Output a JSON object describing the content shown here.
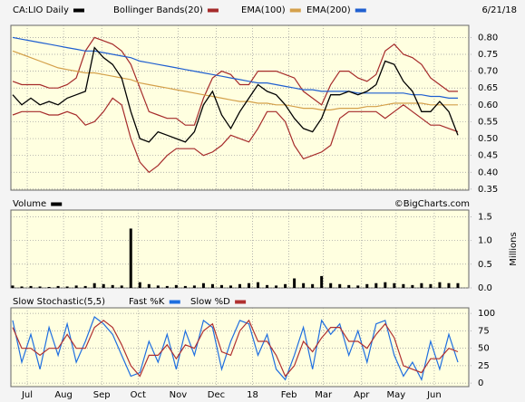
{
  "chart_data": [
    {
      "type": "line",
      "name": "CA:LIO Daily",
      "date": "6/21/18",
      "x": [
        0,
        5,
        10,
        15,
        20,
        25,
        30,
        35,
        40,
        45,
        50,
        55,
        60,
        65,
        70,
        75,
        80,
        85,
        90,
        95,
        100,
        105,
        110,
        115,
        120,
        125,
        130,
        135,
        140,
        145,
        150,
        155,
        160,
        165,
        170,
        175,
        180,
        185,
        190,
        195,
        200,
        205,
        210,
        215,
        220,
        225,
        230,
        235,
        240,
        245
      ],
      "xlim": [
        0,
        250
      ],
      "ylim": [
        0.347,
        0.836
      ],
      "yticks": [
        {
          "value": 0.35,
          "label": "0.35"
        },
        {
          "value": 0.4,
          "label": "0.40"
        },
        {
          "value": 0.45,
          "label": "0.45"
        },
        {
          "value": 0.5,
          "label": "0.50"
        },
        {
          "value": 0.55,
          "label": "0.55"
        },
        {
          "value": 0.6,
          "label": "0.60"
        },
        {
          "value": 0.65,
          "label": "0.65"
        },
        {
          "value": 0.7,
          "label": "0.70"
        },
        {
          "value": 0.75,
          "label": "0.75"
        },
        {
          "value": 0.8,
          "label": "0.80"
        }
      ],
      "grid": true,
      "color": "#000000",
      "values": [
        0.63,
        0.6,
        0.62,
        0.6,
        0.61,
        0.6,
        0.62,
        0.63,
        0.64,
        0.77,
        0.74,
        0.72,
        0.68,
        0.58,
        0.5,
        0.49,
        0.52,
        0.51,
        0.5,
        0.49,
        0.52,
        0.6,
        0.64,
        0.57,
        0.53,
        0.58,
        0.62,
        0.66,
        0.64,
        0.63,
        0.6,
        0.56,
        0.53,
        0.52,
        0.56,
        0.63,
        0.63,
        0.64,
        0.63,
        0.64,
        0.66,
        0.73,
        0.72,
        0.67,
        0.64,
        0.58,
        0.58,
        0.61,
        0.58,
        0.51
      ],
      "bands": {
        "name": "Bollinger Bands(20)",
        "color": "#a52a2a",
        "upper": [
          0.67,
          0.66,
          0.66,
          0.66,
          0.65,
          0.65,
          0.66,
          0.68,
          0.76,
          0.8,
          0.79,
          0.78,
          0.76,
          0.72,
          0.65,
          0.58,
          0.57,
          0.56,
          0.56,
          0.54,
          0.54,
          0.62,
          0.68,
          0.7,
          0.69,
          0.66,
          0.66,
          0.7,
          0.7,
          0.7,
          0.69,
          0.68,
          0.64,
          0.62,
          0.6,
          0.66,
          0.7,
          0.7,
          0.68,
          0.67,
          0.69,
          0.76,
          0.78,
          0.75,
          0.74,
          0.72,
          0.68,
          0.66,
          0.64,
          0.64
        ],
        "lower": [
          0.57,
          0.58,
          0.58,
          0.58,
          0.57,
          0.57,
          0.58,
          0.57,
          0.54,
          0.55,
          0.58,
          0.62,
          0.6,
          0.5,
          0.43,
          0.4,
          0.42,
          0.45,
          0.47,
          0.47,
          0.47,
          0.45,
          0.46,
          0.48,
          0.51,
          0.5,
          0.49,
          0.53,
          0.58,
          0.58,
          0.55,
          0.48,
          0.44,
          0.45,
          0.46,
          0.48,
          0.56,
          0.58,
          0.58,
          0.58,
          0.58,
          0.56,
          0.58,
          0.6,
          0.58,
          0.56,
          0.54,
          0.54,
          0.53,
          0.52
        ]
      },
      "series": [
        {
          "name": "EMA(100)",
          "color": "#d4a04a",
          "values": [
            0.76,
            0.75,
            0.74,
            0.73,
            0.72,
            0.71,
            0.705,
            0.7,
            0.695,
            0.695,
            0.69,
            0.685,
            0.68,
            0.675,
            0.665,
            0.66,
            0.655,
            0.65,
            0.645,
            0.64,
            0.635,
            0.63,
            0.625,
            0.62,
            0.615,
            0.61,
            0.61,
            0.605,
            0.605,
            0.6,
            0.6,
            0.595,
            0.59,
            0.59,
            0.585,
            0.585,
            0.59,
            0.59,
            0.59,
            0.595,
            0.595,
            0.6,
            0.605,
            0.605,
            0.605,
            0.605,
            0.6,
            0.6,
            0.6,
            0.6
          ]
        },
        {
          "name": "EMA(200)",
          "color": "#1f5fd0",
          "values": [
            0.8,
            0.795,
            0.79,
            0.785,
            0.78,
            0.775,
            0.77,
            0.765,
            0.76,
            0.76,
            0.755,
            0.75,
            0.745,
            0.74,
            0.73,
            0.725,
            0.72,
            0.715,
            0.71,
            0.705,
            0.7,
            0.695,
            0.69,
            0.685,
            0.68,
            0.675,
            0.67,
            0.665,
            0.665,
            0.66,
            0.655,
            0.65,
            0.645,
            0.645,
            0.64,
            0.64,
            0.64,
            0.64,
            0.635,
            0.635,
            0.635,
            0.635,
            0.635,
            0.635,
            0.63,
            0.63,
            0.625,
            0.625,
            0.62,
            0.62
          ]
        }
      ]
    },
    {
      "type": "bar",
      "name": "Volume",
      "source": "©BigCharts.com",
      "y_label": "Millions",
      "color": "#000000",
      "x": [
        0,
        5,
        10,
        15,
        20,
        25,
        30,
        35,
        40,
        45,
        50,
        55,
        60,
        65,
        70,
        75,
        80,
        85,
        90,
        95,
        100,
        105,
        110,
        115,
        120,
        125,
        130,
        135,
        140,
        145,
        150,
        155,
        160,
        165,
        170,
        175,
        180,
        185,
        190,
        195,
        200,
        205,
        210,
        215,
        220,
        225,
        230,
        235,
        240,
        245
      ],
      "xlim": [
        0,
        250
      ],
      "ylim": [
        0,
        1.64
      ],
      "yticks": [
        {
          "value": 0,
          "label": "0.0"
        },
        {
          "value": 0.5,
          "label": "0.5"
        },
        {
          "value": 1,
          "label": "1.0"
        },
        {
          "value": 1.5,
          "label": "1.5"
        }
      ],
      "values": [
        0.05,
        0.03,
        0.04,
        0.03,
        0.02,
        0.04,
        0.03,
        0.05,
        0.04,
        0.1,
        0.08,
        0.06,
        0.05,
        1.25,
        0.12,
        0.08,
        0.05,
        0.04,
        0.06,
        0.04,
        0.05,
        0.1,
        0.08,
        0.06,
        0.05,
        0.08,
        0.1,
        0.12,
        0.06,
        0.05,
        0.08,
        0.2,
        0.1,
        0.08,
        0.25,
        0.1,
        0.08,
        0.06,
        0.05,
        0.08,
        0.1,
        0.12,
        0.1,
        0.08,
        0.06,
        0.1,
        0.08,
        0.12,
        0.1,
        0.1
      ]
    },
    {
      "type": "line",
      "title": "Slow Stochastic(5,5)",
      "x": [
        0,
        5,
        10,
        15,
        20,
        25,
        30,
        35,
        40,
        45,
        50,
        55,
        60,
        65,
        70,
        75,
        80,
        85,
        90,
        95,
        100,
        105,
        110,
        115,
        120,
        125,
        130,
        135,
        140,
        145,
        150,
        155,
        160,
        165,
        170,
        175,
        180,
        185,
        190,
        195,
        200,
        205,
        210,
        215,
        220,
        225,
        230,
        235,
        240,
        245
      ],
      "xlim": [
        0,
        250
      ],
      "ylim": [
        -5,
        108
      ],
      "yticks": [
        0,
        25,
        50,
        75,
        100
      ],
      "xticks": [
        {
          "value": 8,
          "label": "Jul"
        },
        {
          "value": 28,
          "label": "Aug"
        },
        {
          "value": 49,
          "label": "Sep"
        },
        {
          "value": 69,
          "label": "Oct"
        },
        {
          "value": 91,
          "label": "Nov"
        },
        {
          "value": 112,
          "label": "Dec"
        },
        {
          "value": 132,
          "label": "18"
        },
        {
          "value": 152,
          "label": "Feb"
        },
        {
          "value": 171,
          "label": "Mar"
        },
        {
          "value": 192,
          "label": "Apr"
        },
        {
          "value": 211,
          "label": "May"
        },
        {
          "value": 232,
          "label": "Jun"
        }
      ],
      "series": [
        {
          "name": "Fast %K",
          "color": "#1f6fe0",
          "values": [
            90,
            30,
            70,
            20,
            80,
            40,
            85,
            30,
            60,
            95,
            85,
            70,
            40,
            10,
            15,
            60,
            30,
            70,
            20,
            75,
            40,
            90,
            80,
            20,
            60,
            90,
            85,
            40,
            70,
            20,
            5,
            40,
            80,
            20,
            90,
            70,
            85,
            40,
            75,
            30,
            85,
            90,
            40,
            10,
            30,
            5,
            60,
            20,
            70,
            30
          ]
        },
        {
          "name": "Slow %D",
          "color": "#b03030",
          "values": [
            80,
            50,
            50,
            40,
            50,
            50,
            70,
            50,
            50,
            80,
            90,
            80,
            55,
            25,
            10,
            40,
            40,
            55,
            35,
            55,
            50,
            75,
            85,
            45,
            40,
            75,
            90,
            60,
            60,
            40,
            10,
            25,
            60,
            45,
            65,
            80,
            80,
            60,
            60,
            50,
            70,
            85,
            65,
            25,
            20,
            15,
            35,
            35,
            50,
            45
          ]
        }
      ]
    }
  ]
}
